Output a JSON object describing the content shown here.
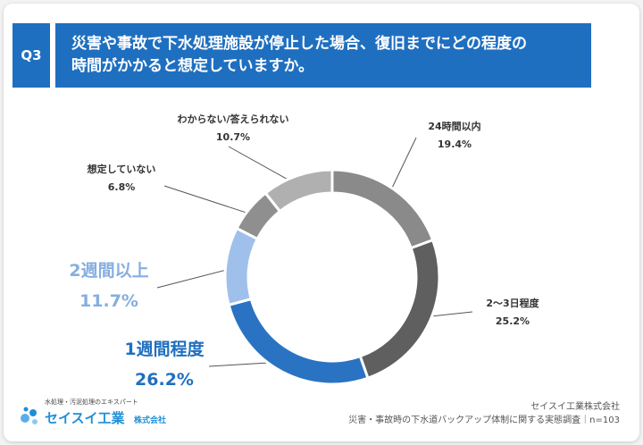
{
  "header": {
    "badge": "Q3",
    "title_line1": "災害や事故で下水処理施設が停止した場合、復旧までにどの程度の",
    "title_line2": "時間がかかると想定していますか。"
  },
  "chart_data": {
    "type": "pie",
    "donut": true,
    "slices": [
      {
        "label": "24時間以内",
        "value": 19.4,
        "display": "19.4%",
        "color": "#8a8a8a"
      },
      {
        "label": "2〜3日程度",
        "value": 25.2,
        "display": "25.2%",
        "color": "#5f5f5f"
      },
      {
        "label": "1週間程度",
        "value": 26.2,
        "display": "26.2%",
        "color": "#2a73c2"
      },
      {
        "label": "2週間以上",
        "value": 11.7,
        "display": "11.7%",
        "color": "#9fc0ea"
      },
      {
        "label": "想定していない",
        "value": 6.8,
        "display": "6.8%",
        "color": "#8f8f8f"
      },
      {
        "label": "わからない/答えられない",
        "value": 10.7,
        "display": "10.7%",
        "color": "#b0b0b0"
      }
    ]
  },
  "logo": {
    "tagline": "水処理・汚泥処理のエキスパート",
    "name": "セイスイ工業",
    "suffix": "株式会社"
  },
  "source": {
    "company": "セイスイ工業株式会社",
    "survey": "災害・事故時の下水道バックアップ体制に関する実態調査｜n=103"
  }
}
